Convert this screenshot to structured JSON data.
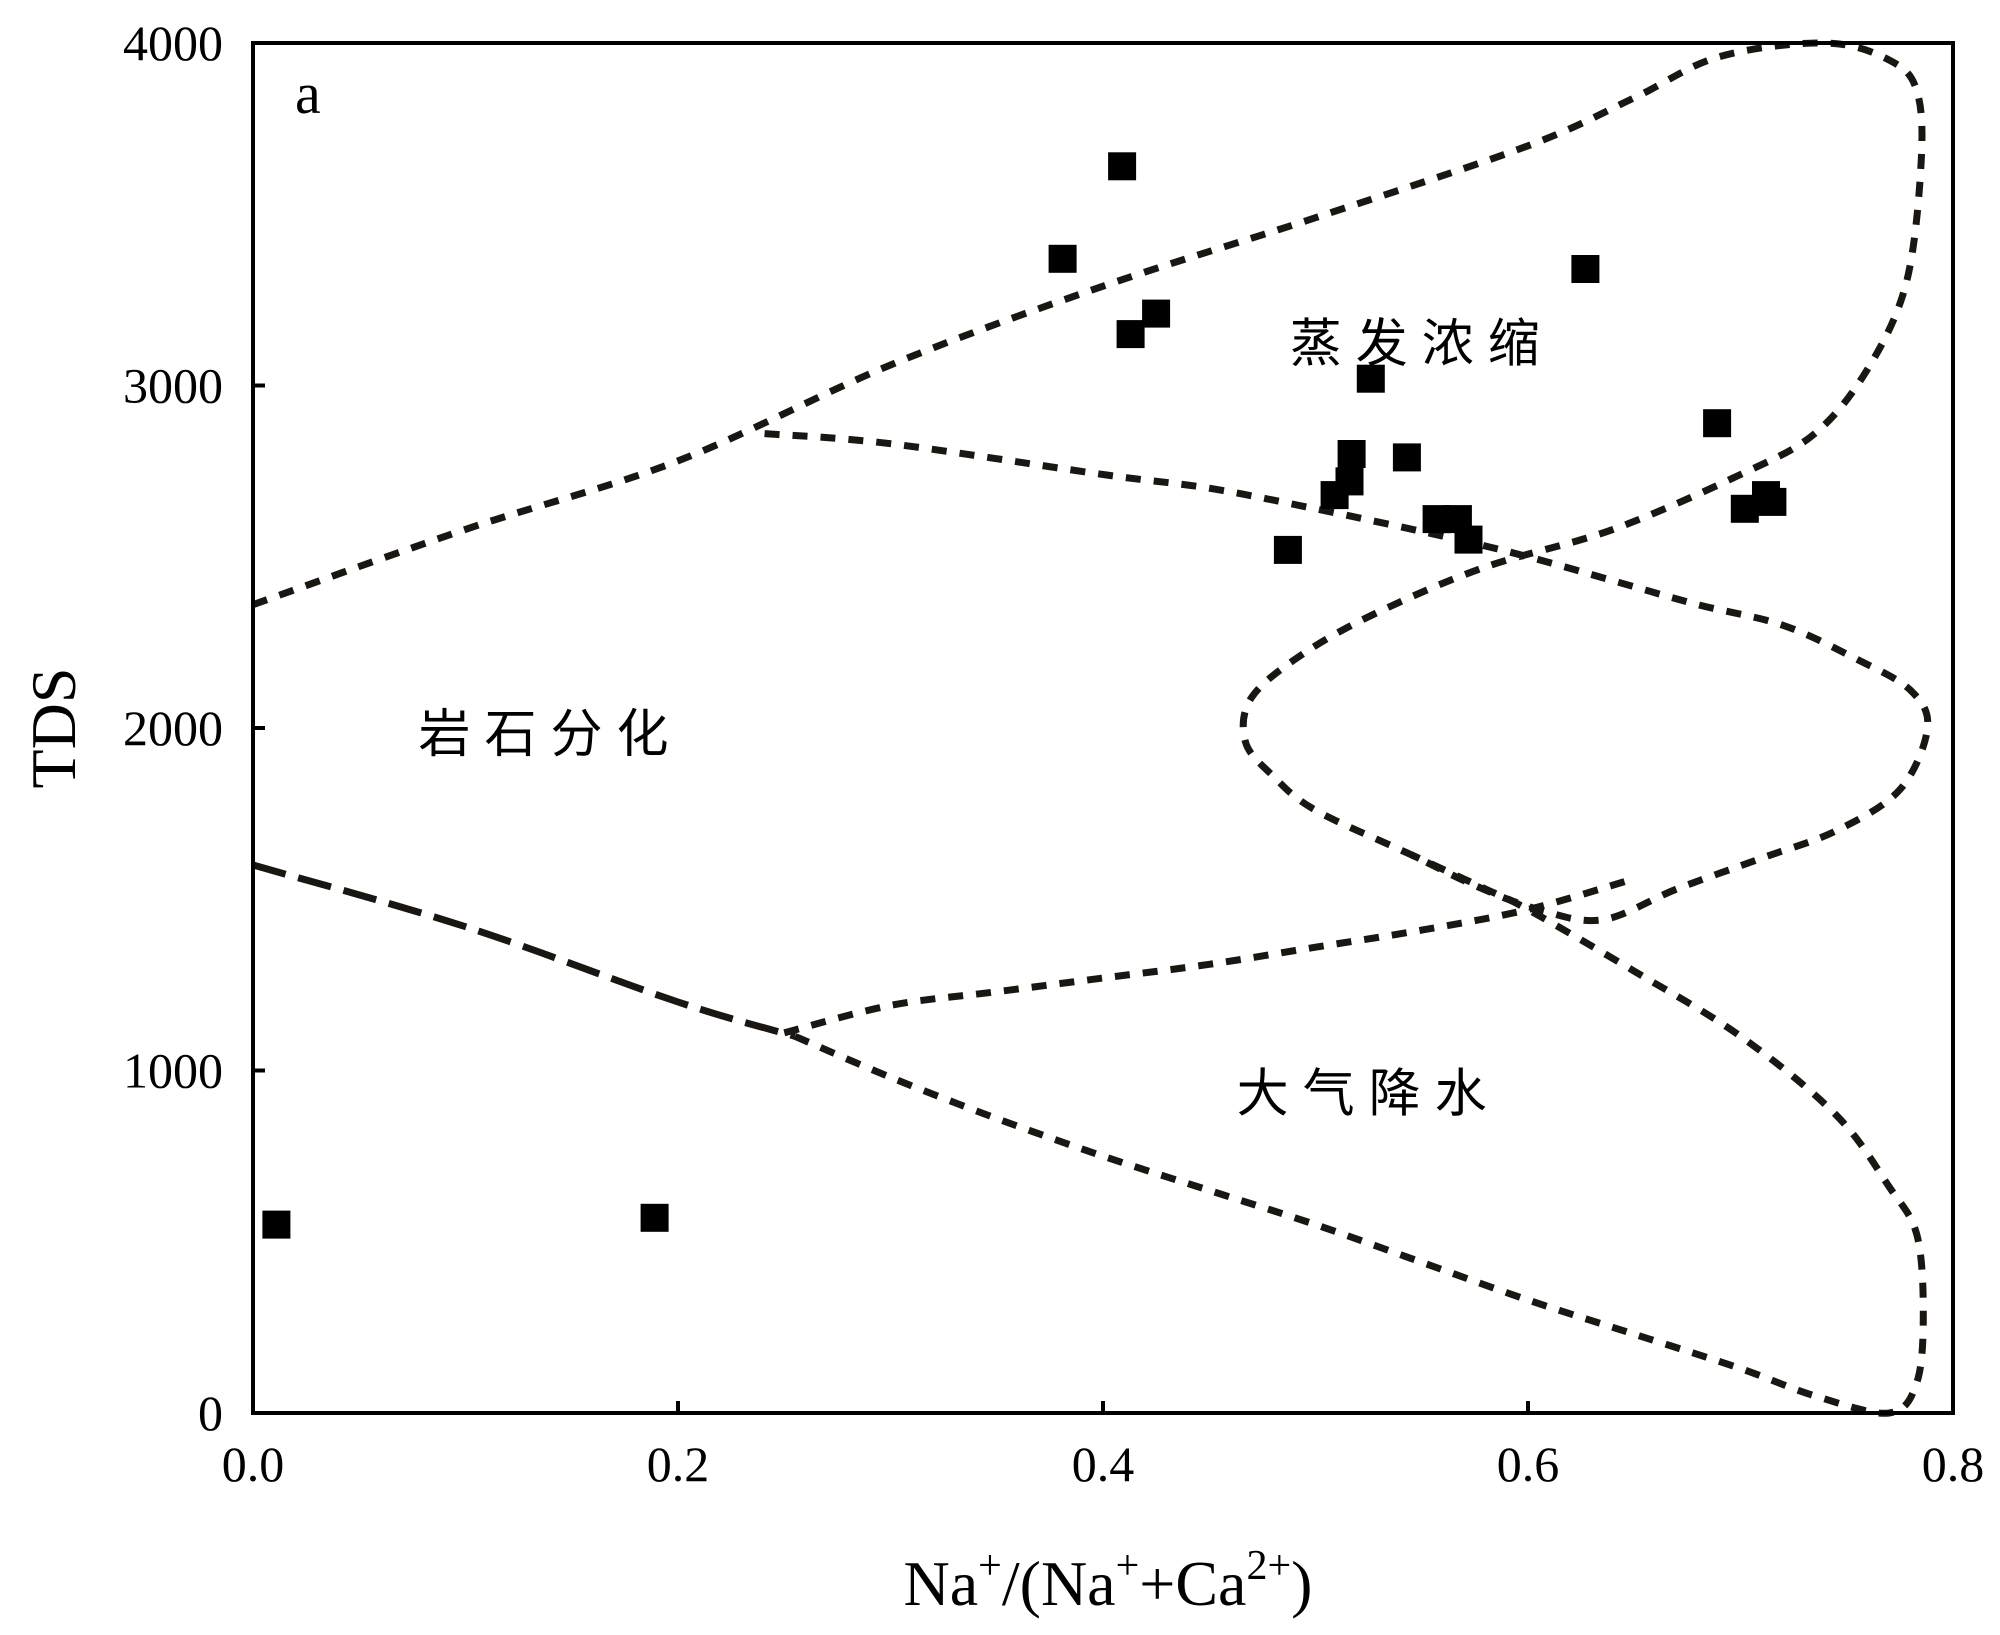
{
  "chart_data": {
    "type": "scatter",
    "panel_label": "a",
    "ylabel": "TDS",
    "xlabel": {
      "parts": [
        {
          "text": "Na",
          "sup": false
        },
        {
          "text": "+",
          "sup": true
        },
        {
          "text": "/(Na",
          "sup": false
        },
        {
          "text": "+",
          "sup": true
        },
        {
          "text": "+Ca",
          "sup": false
        },
        {
          "text": "2+",
          "sup": true
        },
        {
          "text": ")",
          "sup": false
        }
      ]
    },
    "xlim": [
      0.0,
      0.8
    ],
    "ylim": [
      0,
      4000
    ],
    "x_ticks": [
      0.0,
      0.2,
      0.4,
      0.6,
      0.8
    ],
    "x_tick_labels": [
      "0.0",
      "0.2",
      "0.4",
      "0.6",
      "0.8"
    ],
    "y_ticks": [
      0,
      1000,
      2000,
      3000,
      4000
    ],
    "y_tick_labels": [
      "0",
      "1000",
      "2000",
      "3000",
      "4000"
    ],
    "grid": false,
    "marker": "filled-square",
    "marker_color": "#000000",
    "boundary_color": "#1a1712",
    "points": [
      {
        "x": 0.011,
        "y": 550
      },
      {
        "x": 0.189,
        "y": 570
      },
      {
        "x": 0.381,
        "y": 3370
      },
      {
        "x": 0.409,
        "y": 3640
      },
      {
        "x": 0.413,
        "y": 3150
      },
      {
        "x": 0.425,
        "y": 3210
      },
      {
        "x": 0.487,
        "y": 2520
      },
      {
        "x": 0.509,
        "y": 2680
      },
      {
        "x": 0.516,
        "y": 2720
      },
      {
        "x": 0.517,
        "y": 2800
      },
      {
        "x": 0.526,
        "y": 3020
      },
      {
        "x": 0.543,
        "y": 2790
      },
      {
        "x": 0.557,
        "y": 2610
      },
      {
        "x": 0.567,
        "y": 2610
      },
      {
        "x": 0.572,
        "y": 2550
      },
      {
        "x": 0.627,
        "y": 3340
      },
      {
        "x": 0.689,
        "y": 2890
      },
      {
        "x": 0.702,
        "y": 2640
      },
      {
        "x": 0.712,
        "y": 2680
      },
      {
        "x": 0.715,
        "y": 2660
      }
    ],
    "region_labels": [
      {
        "text": "蒸发浓缩",
        "x": 0.55,
        "y": 3070
      },
      {
        "text": "岩石分化",
        "x": 0.14,
        "y": 1930
      },
      {
        "text": "大气降水",
        "x": 0.525,
        "y": 880
      }
    ],
    "boundaries": [
      {
        "dash": "short",
        "points": [
          [
            0.0,
            2360
          ],
          [
            0.1,
            2580
          ],
          [
            0.2,
            2780
          ],
          [
            0.3,
            3060
          ],
          [
            0.4,
            3290
          ],
          [
            0.5,
            3490
          ],
          [
            0.6,
            3700
          ],
          [
            0.65,
            3840
          ],
          [
            0.69,
            3960
          ],
          [
            0.74,
            4000
          ],
          [
            0.77,
            3950
          ],
          [
            0.783,
            3860
          ],
          [
            0.785,
            3650
          ],
          [
            0.778,
            3300
          ],
          [
            0.76,
            3050
          ],
          [
            0.735,
            2860
          ],
          [
            0.7,
            2740
          ],
          [
            0.64,
            2580
          ],
          [
            0.58,
            2470
          ],
          [
            0.53,
            2340
          ],
          [
            0.495,
            2220
          ],
          [
            0.47,
            2090
          ],
          [
            0.467,
            1960
          ],
          [
            0.48,
            1860
          ],
          [
            0.5,
            1760
          ],
          [
            0.545,
            1630
          ],
          [
            0.575,
            1540
          ],
          [
            0.605,
            1470
          ],
          [
            0.635,
            1440
          ],
          [
            0.67,
            1530
          ],
          [
            0.71,
            1620
          ],
          [
            0.745,
            1700
          ],
          [
            0.775,
            1820
          ],
          [
            0.788,
            2000
          ],
          [
            0.78,
            2110
          ],
          [
            0.755,
            2200
          ],
          [
            0.72,
            2300
          ],
          [
            0.68,
            2360
          ],
          [
            0.64,
            2430
          ],
          [
            0.6,
            2500
          ],
          [
            0.56,
            2560
          ],
          [
            0.5,
            2640
          ],
          [
            0.45,
            2700
          ],
          [
            0.4,
            2740
          ],
          [
            0.3,
            2830
          ],
          [
            0.24,
            2860
          ]
        ]
      },
      {
        "dash": "short",
        "points": [
          [
            0.25,
            1110
          ],
          [
            0.3,
            1190
          ],
          [
            0.35,
            1230
          ],
          [
            0.4,
            1270
          ],
          [
            0.45,
            1310
          ],
          [
            0.5,
            1360
          ],
          [
            0.55,
            1410
          ],
          [
            0.6,
            1470
          ],
          [
            0.65,
            1560
          ]
        ]
      },
      {
        "dash": "short",
        "points": [
          [
            0.255,
            1100
          ],
          [
            0.3,
            980
          ],
          [
            0.35,
            860
          ],
          [
            0.4,
            750
          ],
          [
            0.45,
            650
          ],
          [
            0.5,
            550
          ],
          [
            0.55,
            440
          ],
          [
            0.6,
            330
          ],
          [
            0.65,
            230
          ],
          [
            0.7,
            130
          ],
          [
            0.735,
            50
          ],
          [
            0.77,
            0
          ],
          [
            0.783,
            90
          ],
          [
            0.786,
            290
          ],
          [
            0.783,
            520
          ],
          [
            0.77,
            660
          ],
          [
            0.745,
            870
          ],
          [
            0.7,
            1100
          ],
          [
            0.65,
            1290
          ],
          [
            0.6,
            1470
          ],
          [
            0.58,
            1530
          ],
          [
            0.545,
            1630
          ]
        ]
      },
      {
        "dash": "long",
        "points": [
          [
            0.0,
            1600
          ],
          [
            0.1,
            1420
          ],
          [
            0.2,
            1200
          ],
          [
            0.255,
            1100
          ]
        ]
      }
    ]
  }
}
